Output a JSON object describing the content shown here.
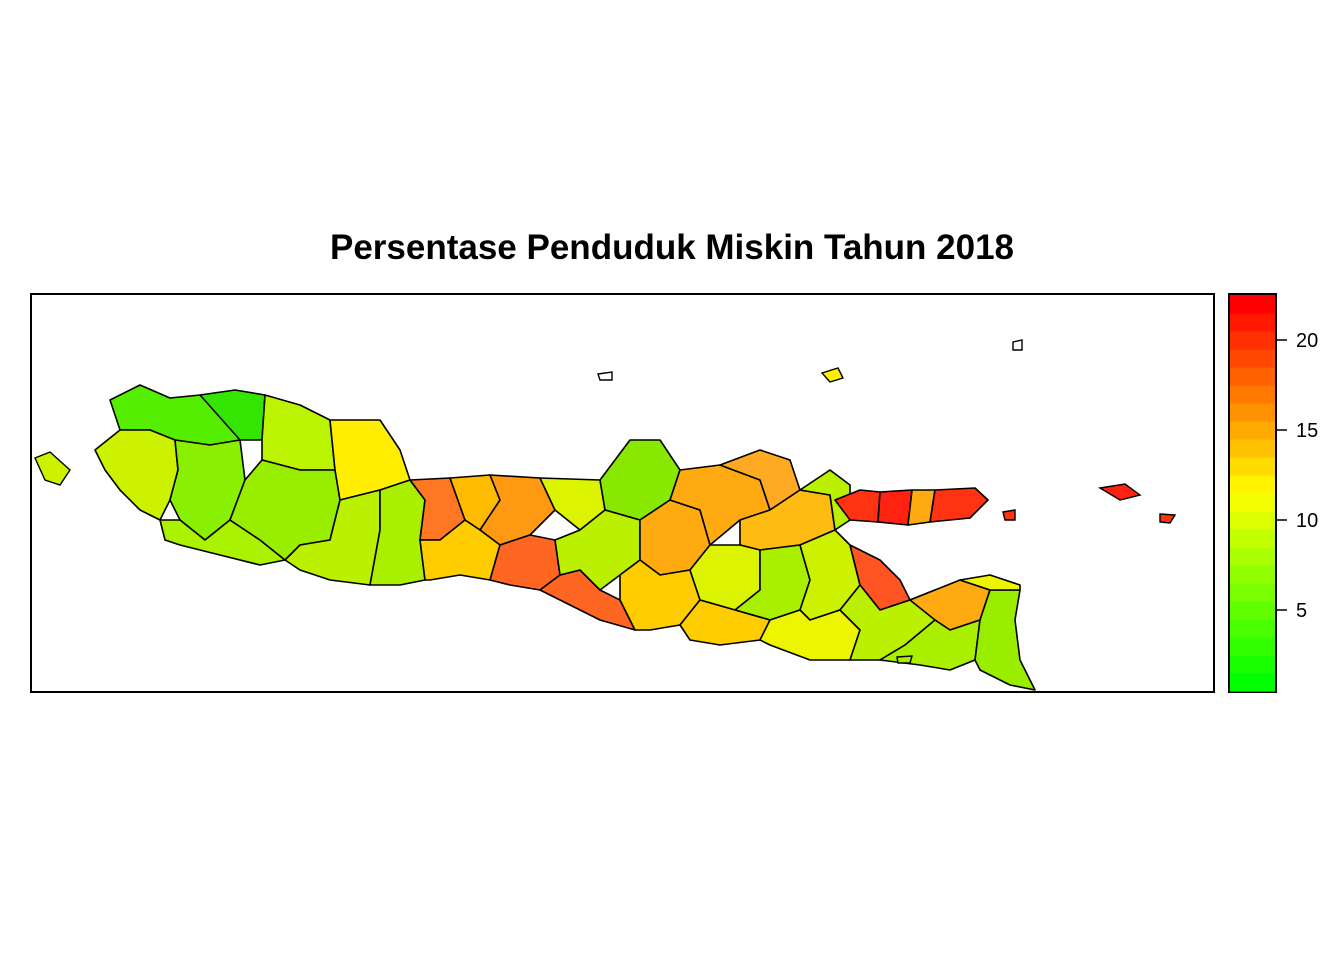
{
  "title": "Persentase Penduduk Miskin Tahun 2018",
  "chart_data": {
    "type": "choropleth",
    "title": "Persentase Penduduk Miskin Tahun 2018",
    "region": "Java, Madura and Bali regencies/cities",
    "color_scale": {
      "min": 0.5,
      "max": 22.5,
      "steps": 22,
      "low_color": "#00ff00",
      "mid_color": "#ffff00",
      "high_color": "#ff0000",
      "ticks": [
        5,
        10,
        15,
        20
      ],
      "tick_labels": [
        "5",
        "10",
        "15",
        "20"
      ]
    },
    "grid": false
  }
}
